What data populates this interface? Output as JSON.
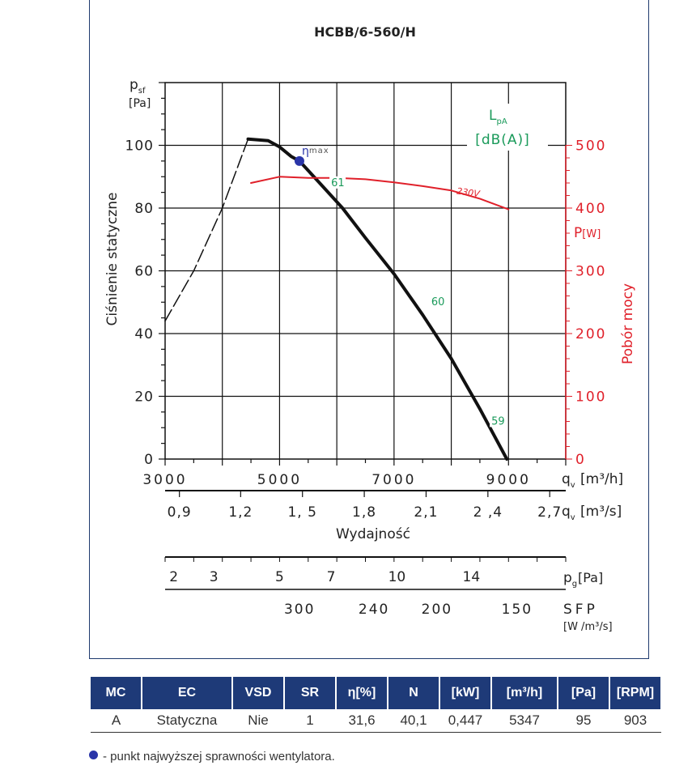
{
  "chart_data": {
    "type": "line",
    "title": "HCBB/6-560/H",
    "ylabel_symbol": "p",
    "ylabel_sub": "sf",
    "yunit": "[Pa]",
    "ylabel": "Ciśnienie statyczne",
    "ylim": [
      0,
      120
    ],
    "yticks": [
      0,
      20,
      40,
      60,
      80,
      100
    ],
    "xlim": [
      3000,
      10000
    ],
    "xticks": [
      3000,
      5000,
      7000,
      9000
    ],
    "xlabel_symbol": "q",
    "xlabel_sub": "v",
    "xunit": "[m³/h]",
    "x2ticks": [
      "0,9",
      "1,2",
      "1, 5",
      "1,8",
      "2,1",
      "2 ,4",
      "2,7"
    ],
    "x2ticks_x": [
      3250,
      4320,
      5400,
      6480,
      7560,
      8640,
      9720
    ],
    "x2unit": "[m³/s]",
    "xlabel": "Wydajność",
    "pg_ticks": [
      "2",
      "3",
      "5",
      "7",
      "10",
      "14"
    ],
    "pg_ticks_x": [
      3150,
      3850,
      5000,
      5900,
      7050,
      8350
    ],
    "pg_label_symbol": "p",
    "pg_label_sub": "g",
    "pg_unit": "[Pa]",
    "sfp_ticks": [
      "300",
      "240",
      "200",
      "150"
    ],
    "sfp_ticks_x": [
      5350,
      6650,
      7750,
      9150
    ],
    "sfp_label": "SFP",
    "sfp_unit": "[W /m³/s]",
    "y2label": "Pobór mocy",
    "y2unit_symbol": "P",
    "y2unit": "[W]",
    "y2lim": [
      0,
      600
    ],
    "y2ticks": [
      0,
      100,
      200,
      300,
      400,
      500
    ],
    "sound_label_symbol": "L",
    "sound_label_sub": "pA",
    "sound_unit": "[dB(A)]",
    "eta_label": "η",
    "eta_sub": "max",
    "series": [
      {
        "name": "",
        "role": "pressure-unstable",
        "style": "dashed",
        "color": "#111111",
        "points": [
          [
            3000,
            44
          ],
          [
            3500,
            60
          ],
          [
            4000,
            80
          ],
          [
            4450,
            102
          ]
        ]
      },
      {
        "name": "",
        "role": "pressure",
        "style": "solid",
        "color": "#111111",
        "points": [
          [
            4450,
            102
          ],
          [
            4800,
            101.5
          ],
          [
            5000,
            99.5
          ],
          [
            5200,
            96.5
          ],
          [
            5347,
            95
          ],
          [
            5700,
            88
          ],
          [
            6100,
            80
          ],
          [
            6500,
            70.5
          ],
          [
            7000,
            59
          ],
          [
            7500,
            46
          ],
          [
            8000,
            32
          ],
          [
            8500,
            16
          ],
          [
            8970,
            0
          ]
        ]
      },
      {
        "name": "230V",
        "role": "power",
        "style": "solid",
        "color": "#e0202a",
        "points": [
          [
            4500,
            440
          ],
          [
            5000,
            450
          ],
          [
            5500,
            448
          ],
          [
            6000,
            448
          ],
          [
            6500,
            446
          ],
          [
            7000,
            441
          ],
          [
            7500,
            435
          ],
          [
            8000,
            428
          ],
          [
            8500,
            415
          ],
          [
            9000,
            398
          ]
        ]
      }
    ],
    "sound_labels": [
      {
        "text": "61",
        "x": 5900,
        "y": 87
      },
      {
        "text": "60",
        "x": 7650,
        "y": 49
      },
      {
        "text": "59",
        "x": 8700,
        "y": 11
      }
    ],
    "eta_max_point": {
      "x": 5347,
      "y": 95
    }
  },
  "table": {
    "headers": [
      "MC",
      "EC",
      "VSD",
      "SR",
      "η[%]",
      "N",
      "[kW]",
      "[m³/h]",
      "[Pa]",
      "[RPM]"
    ],
    "row": [
      "A",
      "Statyczna",
      "Nie",
      "1",
      "31,6",
      "40,1",
      "0,447",
      "5347",
      "95",
      "903"
    ]
  },
  "legend_note": "- punkt najwyższej sprawności wentylatora.",
  "colors": {
    "accent_blue": "#1e3a78",
    "power_red": "#e0202a",
    "sound_green": "#1a9a5a",
    "eta_dot": "#2a35a8"
  }
}
